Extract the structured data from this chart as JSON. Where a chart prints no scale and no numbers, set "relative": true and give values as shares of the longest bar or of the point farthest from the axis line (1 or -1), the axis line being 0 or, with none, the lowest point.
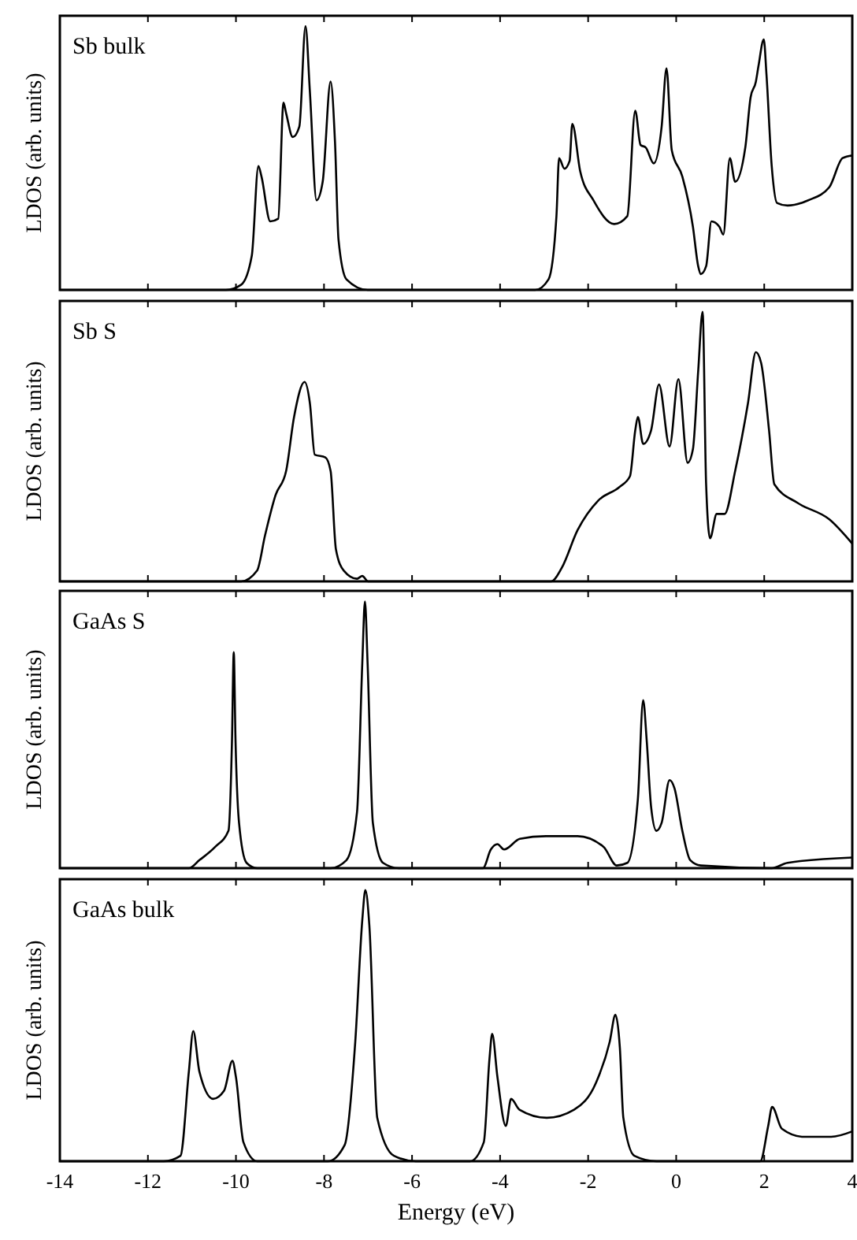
{
  "chart_data": [
    {
      "type": "line",
      "relative": true,
      "ylabel": "LDOS (arb. units)",
      "annotations": [
        "Sb bulk"
      ],
      "xlim": [
        -14,
        4
      ],
      "xticks": [
        -14,
        -12,
        -10,
        -8,
        -6,
        -4,
        -2,
        0,
        2,
        4
      ],
      "tick_labels": false,
      "marker": "none",
      "line_style": "solid",
      "series": [
        {
          "color": "#000000",
          "x": [
            -14,
            -10.23,
            -9.88,
            -9.64,
            -9.49,
            -9.42,
            -9.22,
            -9.04,
            -8.92,
            -8.86,
            -8.71,
            -8.56,
            -8.42,
            -8.32,
            -8.17,
            -8.03,
            -7.85,
            -7.75,
            -7.67,
            -7.49,
            -7.01,
            -3.2,
            -2.9,
            -2.72,
            -2.66,
            -2.54,
            -2.42,
            -2.36,
            -2.18,
            -1.88,
            -1.41,
            -1.11,
            -0.93,
            -0.81,
            -0.69,
            -0.51,
            -0.33,
            -0.22,
            -0.1,
            0.14,
            0.38,
            0.5,
            0.56,
            0.68,
            0.8,
            0.98,
            1.07,
            1.22,
            1.34,
            1.57,
            1.69,
            1.81,
            1.87,
            1.99,
            2.05,
            2.17,
            2.29,
            2.53,
            3.0,
            3.48,
            3.78,
            4
          ],
          "values": [
            0,
            0,
            0.02,
            0.13,
            0.47,
            0.43,
            0.26,
            0.27,
            0.71,
            0.67,
            0.58,
            0.62,
            1,
            0.75,
            0.34,
            0.41,
            0.79,
            0.56,
            0.19,
            0.04,
            0,
            0,
            0.04,
            0.28,
            0.5,
            0.46,
            0.49,
            0.63,
            0.45,
            0.34,
            0.25,
            0.28,
            0.68,
            0.55,
            0.54,
            0.48,
            0.62,
            0.84,
            0.53,
            0.43,
            0.24,
            0.09,
            0.06,
            0.09,
            0.26,
            0.24,
            0.21,
            0.5,
            0.41,
            0.54,
            0.73,
            0.79,
            0.85,
            0.95,
            0.82,
            0.47,
            0.33,
            0.32,
            0.34,
            0.39,
            0.5,
            0.51
          ]
        }
      ]
    },
    {
      "type": "line",
      "relative": true,
      "ylabel": "LDOS (arb. units)",
      "annotations": [
        "Sb S"
      ],
      "xlim": [
        -14,
        4
      ],
      "xticks": [
        -14,
        -12,
        -10,
        -8,
        -6,
        -4,
        -2,
        0,
        2,
        4
      ],
      "tick_labels": false,
      "marker": "none",
      "line_style": "solid",
      "series": [
        {
          "color": "#000000",
          "x": [
            -14,
            -9.88,
            -9.52,
            -9.34,
            -9.1,
            -8.86,
            -8.68,
            -8.44,
            -8.32,
            -8.21,
            -7.97,
            -7.85,
            -7.73,
            -7.55,
            -7.25,
            -7.13,
            -7.0,
            -2.84,
            -2.6,
            -2.24,
            -1.77,
            -1.29,
            -1.05,
            -0.93,
            -0.87,
            -0.75,
            -0.57,
            -0.39,
            -0.15,
            0.05,
            0.26,
            0.38,
            0.5,
            0.6,
            0.68,
            0.77,
            0.92,
            1.1,
            1.34,
            1.63,
            1.81,
            1.93,
            2.11,
            2.23,
            2.77,
            3.48,
            4
          ],
          "values": [
            0,
            0,
            0.04,
            0.17,
            0.32,
            0.41,
            0.61,
            0.74,
            0.66,
            0.47,
            0.46,
            0.41,
            0.12,
            0.04,
            0.01,
            0.02,
            0,
            0,
            0.05,
            0.19,
            0.3,
            0.35,
            0.39,
            0.56,
            0.61,
            0.51,
            0.56,
            0.73,
            0.5,
            0.75,
            0.44,
            0.49,
            0.78,
            1,
            0.36,
            0.16,
            0.25,
            0.25,
            0.41,
            0.66,
            0.85,
            0.81,
            0.56,
            0.36,
            0.29,
            0.23,
            0.14
          ]
        }
      ]
    },
    {
      "type": "line",
      "relative": true,
      "ylabel": "LDOS (arb. units)",
      "annotations": [
        "GaAs S"
      ],
      "xlim": [
        -14,
        4
      ],
      "xticks": [
        -14,
        -12,
        -10,
        -8,
        -6,
        -4,
        -2,
        0,
        2,
        4
      ],
      "tick_labels": false,
      "marker": "none",
      "line_style": "solid",
      "series": [
        {
          "color": "#000000",
          "x": [
            -14,
            -11.07,
            -10.83,
            -10.47,
            -10.17,
            -10.09,
            -10.05,
            -10.01,
            -9.93,
            -9.76,
            -9.52,
            -7.85,
            -7.49,
            -7.25,
            -7.13,
            -7.07,
            -7.01,
            -6.89,
            -6.66,
            -6.3,
            -4.39,
            -4.21,
            -4.06,
            -3.91,
            -3.55,
            -2.96,
            -2.24,
            -1.65,
            -1.35,
            -1.11,
            -0.87,
            -0.75,
            -0.67,
            -0.57,
            -0.45,
            -0.33,
            -0.15,
            -0.04,
            0.14,
            0.32,
            0.56,
            2.17,
            2.53,
            4
          ],
          "values": [
            0,
            0,
            0.03,
            0.08,
            0.14,
            0.48,
            0.81,
            0.48,
            0.17,
            0.02,
            0,
            0,
            0.03,
            0.21,
            0.77,
            1,
            0.77,
            0.17,
            0.02,
            0,
            0,
            0.07,
            0.09,
            0.07,
            0.11,
            0.12,
            0.12,
            0.08,
            0.01,
            0.02,
            0.26,
            0.63,
            0.48,
            0.23,
            0.14,
            0.17,
            0.33,
            0.3,
            0.14,
            0.03,
            0.01,
            0,
            0.02,
            0.04
          ]
        }
      ]
    },
    {
      "type": "line",
      "relative": true,
      "ylabel": "LDOS (arb. units)",
      "xlabel": "Energy (eV)",
      "annotations": [
        "GaAs bulk"
      ],
      "xlim": [
        -14,
        4
      ],
      "xticks": [
        -14,
        -12,
        -10,
        -8,
        -6,
        -4,
        -2,
        0,
        2,
        4
      ],
      "tick_labels": "x",
      "marker": "none",
      "line_style": "solid",
      "series": [
        {
          "color": "#000000",
          "x": [
            -14,
            -11.64,
            -11.26,
            -11.07,
            -10.97,
            -10.83,
            -10.52,
            -10.27,
            -10.08,
            -10.0,
            -9.83,
            -9.52,
            -7.91,
            -7.53,
            -7.29,
            -7.13,
            -7.06,
            -6.97,
            -6.79,
            -6.41,
            -5.92,
            -4.68,
            -4.37,
            -4.24,
            -4.18,
            -4.06,
            -3.87,
            -3.75,
            -3.56,
            -2.94,
            -2.32,
            -1.82,
            -1.51,
            -1.38,
            -1.28,
            -1.2,
            -0.95,
            -0.45,
            1.91,
            2.09,
            2.18,
            2.4,
            2.9,
            3.52,
            4
          ],
          "values": [
            0,
            0,
            0.02,
            0.33,
            0.48,
            0.33,
            0.23,
            0.26,
            0.37,
            0.31,
            0.07,
            0,
            0,
            0.06,
            0.44,
            0.89,
            1,
            0.87,
            0.16,
            0.02,
            0,
            0,
            0.07,
            0.38,
            0.47,
            0.31,
            0.13,
            0.23,
            0.19,
            0.16,
            0.19,
            0.29,
            0.44,
            0.54,
            0.42,
            0.16,
            0.02,
            0,
            0,
            0.13,
            0.2,
            0.12,
            0.09,
            0.09,
            0.11
          ]
        }
      ]
    }
  ]
}
